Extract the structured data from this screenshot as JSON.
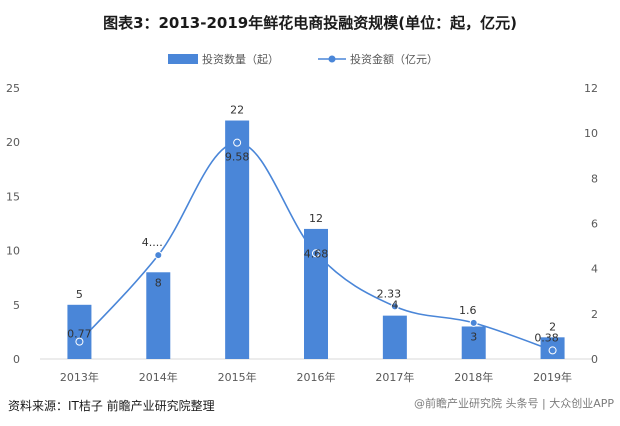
{
  "title": "图表3：2013-2019年鲜花电商投融资规模(单位：起，亿元)",
  "source": "资料来源：IT桔子 前瞻产业研究院整理",
  "watermark_corner": "@前瞻产业研究院 头条号 | 大众创业APP",
  "watermark_text": "前瞻产业研究院",
  "colors": {
    "bar": "#4a86d8",
    "line": "#4a86d8",
    "axis": "#d9d9d9"
  },
  "chart_data": {
    "type": "bar",
    "categories": [
      "2013年",
      "2014年",
      "2015年",
      "2016年",
      "2017年",
      "2018年",
      "2019年"
    ],
    "series": [
      {
        "name": "投资数量（起）",
        "type": "bar",
        "axis": "left",
        "values": [
          5,
          8,
          22,
          12,
          4,
          3,
          2
        ],
        "labels": [
          "5",
          "8",
          "22",
          "12",
          "4",
          "3",
          "2"
        ]
      },
      {
        "name": "投资金额（亿元）",
        "type": "line",
        "axis": "right",
        "values": [
          0.77,
          4.6,
          9.58,
          4.68,
          2.33,
          1.6,
          0.38
        ],
        "labels": [
          "0.77",
          "4....",
          "9.58",
          "4.68",
          "2.33",
          "1.6",
          "0.38"
        ]
      }
    ],
    "y_left": {
      "min": 0,
      "max": 25,
      "ticks": [
        0,
        5,
        10,
        15,
        20,
        25
      ]
    },
    "y_right": {
      "min": 0,
      "max": 12,
      "ticks": [
        0,
        2,
        4,
        6,
        8,
        10,
        12
      ]
    },
    "legend_position": "top-center",
    "grid": false
  }
}
